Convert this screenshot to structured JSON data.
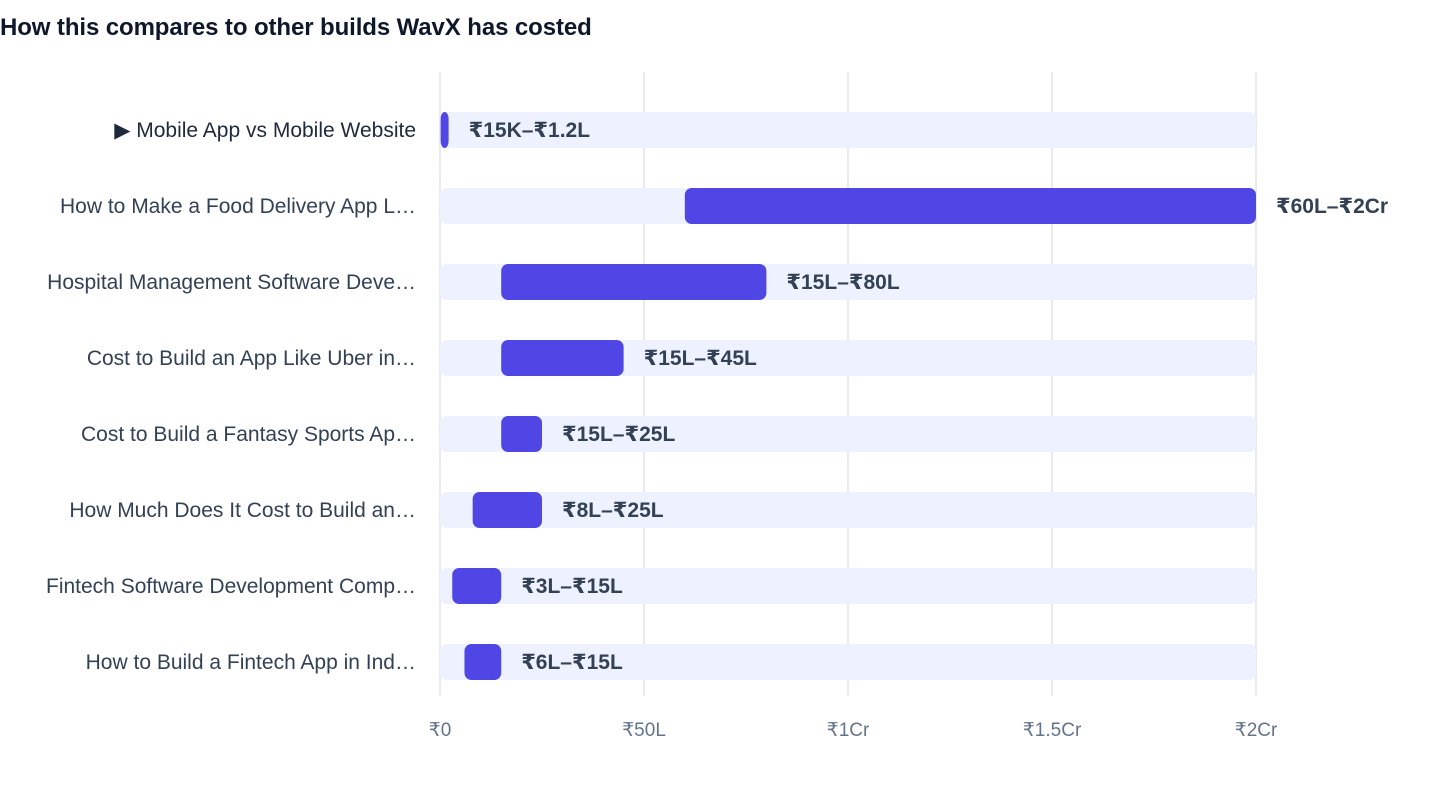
{
  "colors": {
    "bar": "#4f46e5",
    "track": "#eef2ff",
    "grid": "#e2e4e9",
    "label": "#334155",
    "tick": "#64748b",
    "title": "#0f172a"
  },
  "chart_data": {
    "type": "bar",
    "orientation": "horizontal-range",
    "title": "How this compares to other builds WavX has costed",
    "xlabel": "",
    "ylabel": "",
    "unit": "lakh INR",
    "xlim": [
      0,
      200
    ],
    "grid": "vertical",
    "x_ticks": [
      {
        "value": 0,
        "label": "₹0"
      },
      {
        "value": 50,
        "label": "₹50L"
      },
      {
        "value": 100,
        "label": "₹1Cr"
      },
      {
        "value": 150,
        "label": "₹1.5Cr"
      },
      {
        "value": 200,
        "label": "₹2Cr"
      }
    ],
    "rows": [
      {
        "label": "▶ Mobile App vs Mobile Website",
        "low": 0.15,
        "high": 1.2,
        "value_label": "₹15K–₹1.2L",
        "highlighted": true
      },
      {
        "label": "How to Make a Food Delivery App L…",
        "low": 60,
        "high": 200,
        "value_label": "₹60L–₹2Cr",
        "highlighted": false
      },
      {
        "label": "Hospital Management Software Deve…",
        "low": 15,
        "high": 80,
        "value_label": "₹15L–₹80L",
        "highlighted": false
      },
      {
        "label": "Cost to Build an App Like Uber in…",
        "low": 15,
        "high": 45,
        "value_label": "₹15L–₹45L",
        "highlighted": false
      },
      {
        "label": "Cost to Build a Fantasy Sports Ap…",
        "low": 15,
        "high": 25,
        "value_label": "₹15L–₹25L",
        "highlighted": false
      },
      {
        "label": "How Much Does It Cost to Build an…",
        "low": 8,
        "high": 25,
        "value_label": "₹8L–₹25L",
        "highlighted": false
      },
      {
        "label": "Fintech Software Development Comp…",
        "low": 3,
        "high": 15,
        "value_label": "₹3L–₹15L",
        "highlighted": false
      },
      {
        "label": "How to Build a Fintech App in Ind…",
        "low": 6,
        "high": 15,
        "value_label": "₹6L–₹15L",
        "highlighted": false
      }
    ]
  }
}
